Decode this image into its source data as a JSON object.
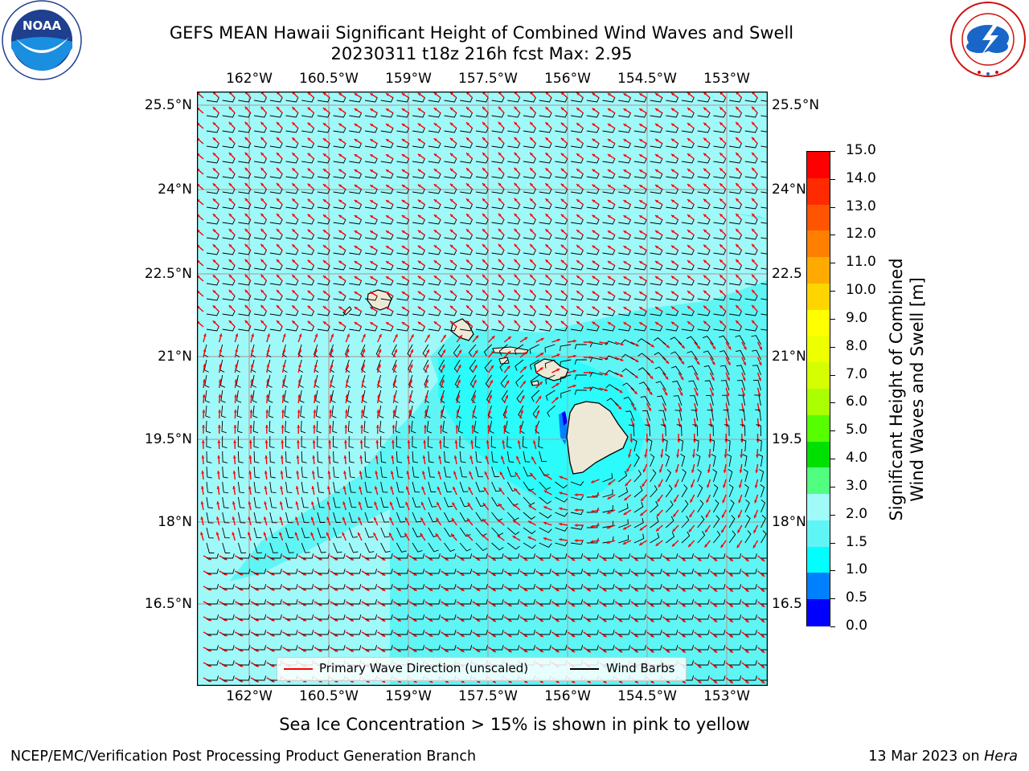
{
  "title": {
    "line1": "GEFS MEAN Hawaii Significant Height of Combined Wind Waves and Swell",
    "line2": "20230311 t18z 216h fcst   Max: 2.95"
  },
  "logos": {
    "left": {
      "name": "noaa-logo",
      "text": "NOAA",
      "ring_text": "NATIONAL OCEANIC AND ATMOSPHERIC ADMINISTRATION · U.S. DEPARTMENT OF COMMERCE"
    },
    "right": {
      "name": "nws-logo",
      "ring_text": "NATIONAL WEATHER SERVICE"
    }
  },
  "map": {
    "lon_labels": [
      "162°W",
      "160.5°W",
      "159°W",
      "157.5°W",
      "156°W",
      "154.5°W",
      "153°W"
    ],
    "lat_labels_left": [
      "25.5°N",
      "24°N",
      "22.5°N",
      "21°N",
      "19.5°N",
      "18°N",
      "16.5°N"
    ],
    "lat_labels_right": [
      "25.5°N",
      "24°N",
      "22.5",
      "21°N",
      "19.5",
      "18°N",
      "16.5"
    ],
    "legend": {
      "wave_dir": "Primary Wave Direction (unscaled)",
      "wave_dir_color": "#ff0000",
      "wind_barbs": "Wind Barbs",
      "wind_barbs_color": "#000000"
    },
    "field_colors": {
      "ocean_light": "#9ff9f9",
      "ocean_mid": "#5ff5f5",
      "ocean_low": "#00ffff",
      "land": "#ede9d6"
    }
  },
  "colorbar": {
    "title_line1": "Significant Height of Combined",
    "title_line2": "Wind Waves and Swell [m]",
    "labels": [
      "15.0",
      "14.0",
      "13.0",
      "12.0",
      "11.0",
      "10.0",
      "9.0",
      "8.0",
      "7.0",
      "6.0",
      "5.0",
      "4.0",
      "3.0",
      "2.0",
      "1.5",
      "1.0",
      "0.5",
      "0.0"
    ],
    "colors_top_to_bottom": [
      "#ff0000",
      "#ff2a00",
      "#ff5500",
      "#ff8000",
      "#ffaa00",
      "#ffd500",
      "#ffff00",
      "#eeff00",
      "#d5ff00",
      "#aaff00",
      "#55ff00",
      "#00e000",
      "#50ff80",
      "#9ffaf8",
      "#5ff5f5",
      "#00ffff",
      "#0080ff",
      "#0000ff"
    ]
  },
  "note": "Sea Ice Concentration > 15% is shown in pink to yellow",
  "footer": {
    "left": "NCEP/EMC/Verification Post Processing Product Generation Branch",
    "right_date": "13 Mar 2023 on ",
    "right_host": "Hera"
  }
}
